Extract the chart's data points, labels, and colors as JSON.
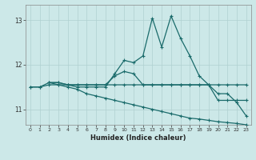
{
  "xlabel": "Humidex (Indice chaleur)",
  "bg_color": "#cce8e8",
  "line_color": "#1a6b6b",
  "grid_color": "#b0d0d0",
  "xlim": [
    -0.5,
    23.5
  ],
  "ylim": [
    10.65,
    13.35
  ],
  "yticks": [
    11,
    12,
    13
  ],
  "xticks": [
    0,
    1,
    2,
    3,
    4,
    5,
    6,
    7,
    8,
    9,
    10,
    11,
    12,
    13,
    14,
    15,
    16,
    17,
    18,
    19,
    20,
    21,
    22,
    23
  ],
  "lines": [
    {
      "x": [
        0,
        1,
        2,
        3,
        4,
        5,
        6,
        7,
        8,
        9,
        10,
        11,
        12,
        13,
        14,
        15,
        16,
        17,
        18,
        19,
        20,
        21,
        22,
        23
      ],
      "y": [
        11.5,
        11.5,
        11.55,
        11.55,
        11.55,
        11.55,
        11.55,
        11.55,
        11.55,
        11.55,
        11.55,
        11.55,
        11.55,
        11.55,
        11.55,
        11.55,
        11.55,
        11.55,
        11.55,
        11.55,
        11.55,
        11.55,
        11.55,
        11.55
      ]
    },
    {
      "x": [
        0,
        1,
        2,
        3,
        4,
        5,
        6,
        7,
        8,
        9,
        10,
        11,
        12,
        13,
        14,
        15,
        16,
        17,
        18,
        19,
        20,
        21,
        22,
        23
      ],
      "y": [
        11.5,
        11.5,
        11.6,
        11.6,
        11.55,
        11.5,
        11.5,
        11.5,
        11.5,
        11.8,
        12.1,
        12.05,
        12.2,
        13.05,
        12.4,
        13.1,
        12.6,
        12.2,
        11.75,
        11.55,
        11.35,
        11.35,
        11.15,
        10.85
      ]
    },
    {
      "x": [
        2,
        3,
        4,
        5,
        6,
        7,
        8,
        9,
        10,
        11,
        12,
        13,
        14,
        15,
        16,
        17,
        18,
        19,
        20,
        21,
        22,
        23
      ],
      "y": [
        11.6,
        11.6,
        11.55,
        11.55,
        11.55,
        11.55,
        11.55,
        11.75,
        11.85,
        11.8,
        11.55,
        11.55,
        11.55,
        11.55,
        11.55,
        11.55,
        11.55,
        11.55,
        11.2,
        11.2,
        11.2,
        11.2
      ]
    },
    {
      "x": [
        2,
        3,
        4,
        5,
        6,
        7,
        8,
        9,
        10,
        11,
        12,
        13,
        14,
        15,
        16,
        17,
        18,
        19,
        20,
        21,
        22,
        23
      ],
      "y": [
        11.6,
        11.55,
        11.5,
        11.45,
        11.35,
        11.3,
        11.25,
        11.2,
        11.15,
        11.1,
        11.05,
        11.0,
        10.95,
        10.9,
        10.85,
        10.8,
        10.78,
        10.75,
        10.72,
        10.7,
        10.68,
        10.65
      ]
    }
  ]
}
